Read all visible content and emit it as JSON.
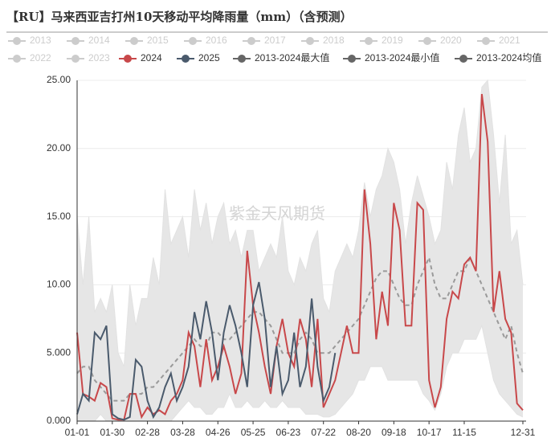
{
  "chart_data": {
    "type": "line",
    "title": "【RU】马来西亚吉打州10天移动平均降雨量（mm）（含预测）",
    "watermark": "紫金天风期货",
    "legend_inactive": [
      "2013",
      "2014",
      "2015",
      "2016",
      "2017",
      "2018",
      "2019",
      "2020",
      "2021",
      "2022",
      "2023"
    ],
    "categories": [
      "01-01",
      null,
      null,
      null,
      null,
      null,
      "01-30",
      null,
      null,
      null,
      null,
      null,
      "02-28",
      null,
      null,
      null,
      null,
      null,
      "03-28",
      null,
      null,
      null,
      null,
      null,
      "04-26",
      null,
      null,
      null,
      null,
      null,
      "05-25",
      null,
      null,
      null,
      null,
      null,
      "06-23",
      null,
      null,
      null,
      null,
      null,
      "07-22",
      null,
      null,
      null,
      null,
      null,
      "08-20",
      null,
      null,
      null,
      null,
      null,
      "09-18",
      null,
      null,
      null,
      null,
      null,
      "10-17",
      null,
      null,
      null,
      null,
      null,
      "11-15",
      null,
      null,
      null,
      null,
      null,
      null,
      null,
      null,
      null,
      "12-31"
    ],
    "ylim": [
      0,
      25
    ],
    "yticks": [
      {
        "value": 0,
        "label": "0.000"
      },
      {
        "value": 5,
        "label": "5.000"
      },
      {
        "value": 10,
        "label": "10.00"
      },
      {
        "value": 15,
        "label": "15.00"
      },
      {
        "value": 20,
        "label": "20.00"
      },
      {
        "value": 25,
        "label": "25.00"
      }
    ],
    "grid": true,
    "series": [
      {
        "name": "2024",
        "color": "#c8484a",
        "values": [
          6.5,
          2.0,
          1.8,
          1.5,
          2.8,
          2.5,
          0.2,
          0.1,
          0.1,
          2.0,
          2.0,
          0.3,
          1.0,
          0.5,
          0.8,
          0.5,
          1.5,
          2.0,
          3.0,
          6.5,
          5.5,
          2.5,
          6.0,
          3.0,
          4.0,
          5.5,
          4.0,
          2.0,
          3.5,
          12.5,
          8.5,
          6.5,
          4.0,
          2.0,
          5.5,
          7.5,
          5.0,
          4.0,
          7.5,
          6.0,
          2.5,
          7.5,
          1.0,
          2.0,
          3.0,
          5.0,
          7.0,
          5.0,
          5.0,
          17.0,
          13.0,
          6.0,
          9.5,
          7.0,
          16.0,
          14.0,
          7.0,
          7.0,
          16.0,
          15.5,
          3.0,
          1.0,
          2.5,
          7.5,
          9.5,
          9.0,
          11.5,
          12.0,
          11.0,
          24.0,
          20.5,
          8.0,
          11.0,
          7.5,
          6.5,
          1.3,
          0.8
        ]
      },
      {
        "name": "2025",
        "color": "#4a5a6c",
        "values": [
          0.5,
          2.0,
          1.5,
          6.5,
          6.0,
          7.0,
          0.5,
          0.2,
          0.1,
          0.3,
          4.5,
          4.0,
          1.5,
          0.3,
          1.0,
          2.5,
          3.5,
          1.5,
          2.5,
          4.0,
          8.0,
          6.0,
          8.8,
          6.5,
          3.0,
          6.5,
          8.5,
          7.0,
          5.0,
          2.5,
          8.5,
          10.2,
          7.5,
          2.5,
          5.5,
          2.0,
          3.0,
          6.5,
          2.5,
          4.0,
          9.0,
          4.0,
          1.5,
          2.5,
          5.0,
          null,
          null,
          null,
          null,
          null,
          null,
          null,
          null,
          null,
          null,
          null,
          null,
          null,
          null,
          null,
          null,
          null,
          null,
          null,
          null,
          null,
          null,
          null,
          null,
          null,
          null,
          null,
          null,
          null,
          null,
          null,
          null
        ]
      },
      {
        "name": "2013-2024最大值",
        "color": "#666666",
        "values": [
          15,
          10,
          15,
          8,
          9,
          8,
          10,
          5,
          4,
          10,
          7,
          9,
          9,
          12,
          10,
          17,
          13,
          14,
          15,
          12,
          17,
          14,
          16,
          13,
          15,
          16,
          13,
          14,
          12,
          14,
          14,
          11,
          12,
          13,
          12,
          15,
          11,
          10,
          12,
          11,
          13,
          14,
          9,
          8,
          11,
          12,
          13,
          12,
          14,
          17.5,
          15,
          17,
          18,
          20,
          19,
          17,
          13,
          16,
          18,
          16.5,
          15,
          13,
          14,
          19,
          17,
          21,
          23,
          19,
          20,
          24.5,
          25,
          21,
          16,
          21,
          13,
          14,
          10
        ]
      },
      {
        "name": "2013-2024最小值",
        "color": "#666666",
        "values": [
          0,
          0,
          0,
          0,
          0.5,
          0,
          0,
          0,
          0,
          0,
          0,
          0,
          0,
          0,
          0,
          0,
          0,
          0.5,
          1,
          1.5,
          1,
          1,
          0.5,
          0.5,
          1,
          1,
          2,
          1,
          1,
          1.5,
          1,
          1,
          1.5,
          1,
          1,
          1.5,
          1,
          1,
          1,
          0.5,
          0.5,
          0.5,
          0.3,
          0.3,
          0.5,
          1,
          1.5,
          2,
          3,
          3,
          4,
          4,
          4,
          3,
          3,
          3,
          3,
          3,
          3,
          2,
          1.5,
          0.8,
          2,
          4,
          5,
          5,
          6,
          6,
          6,
          7,
          5,
          3,
          2,
          1.5,
          1,
          0.5,
          0.3
        ]
      },
      {
        "name": "2013-2024均值",
        "color": "#666666",
        "values": [
          3.5,
          4,
          4,
          3,
          2.5,
          2,
          1.5,
          1.5,
          1.5,
          2,
          2,
          2,
          2.5,
          2.5,
          3,
          3.5,
          4,
          4.5,
          5,
          5.5,
          6,
          5.5,
          5.5,
          6.5,
          6.5,
          6,
          6,
          6.5,
          7,
          7.5,
          8,
          8,
          7.5,
          7,
          6,
          5,
          5,
          5,
          6,
          6.5,
          6,
          5,
          5,
          5,
          5.5,
          6,
          6.5,
          7,
          7.5,
          8.5,
          9.5,
          10.5,
          11,
          11,
          10,
          9,
          8.5,
          8.5,
          10,
          11,
          12,
          10,
          9,
          9,
          10,
          11,
          11,
          12,
          11,
          10,
          9,
          8,
          7,
          6,
          7,
          5,
          3.5
        ]
      }
    ]
  }
}
